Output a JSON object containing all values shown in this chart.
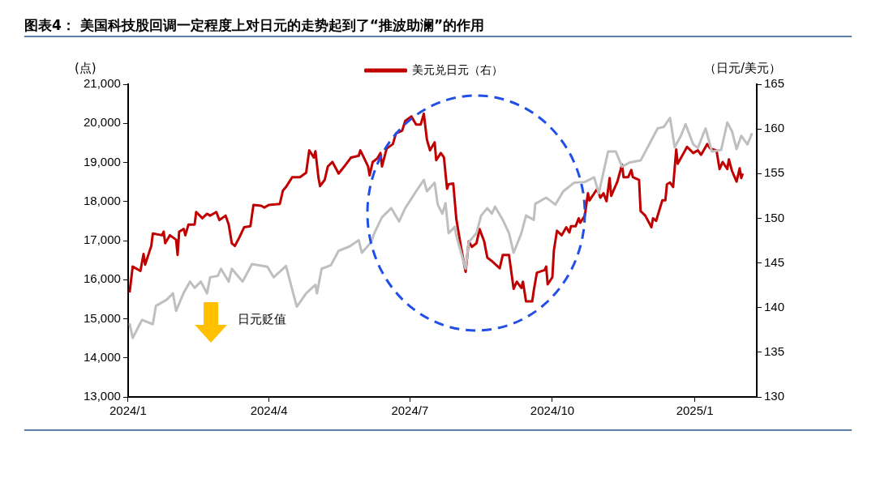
{
  "chart_data": {
    "type": "line",
    "title": "图表4：  美国科技股回调一定程度上对日元的走势起到了“推波助澜”的作用",
    "ylabel": "(点)",
    "y2label": "（日元/美元）",
    "annotations": [
      "日元贬值"
    ],
    "legend": "top",
    "grid": false,
    "marker": "none",
    "line_style": "solid",
    "xlim": [
      "2024-01-01",
      "2025-02-10"
    ],
    "xticks": [
      {
        "value": "2024-01-01",
        "label": "2024/1"
      },
      {
        "value": "2024-04-01",
        "label": "2024/4"
      },
      {
        "value": "2024-07-01",
        "label": "2024/7"
      },
      {
        "value": "2024-10-01",
        "label": "2024/10"
      },
      {
        "value": "2025-01-01",
        "label": "2025/1"
      }
    ],
    "ylim": [
      13000,
      21000
    ],
    "yticks": [
      {
        "value": 13000,
        "label": "13,000"
      },
      {
        "value": 14000,
        "label": "14,000"
      },
      {
        "value": 15000,
        "label": "15,000"
      },
      {
        "value": 16000,
        "label": "16,000"
      },
      {
        "value": 17000,
        "label": "17,000"
      },
      {
        "value": 18000,
        "label": "18,000"
      },
      {
        "value": 19000,
        "label": "19,000"
      },
      {
        "value": 20000,
        "label": "20,000"
      },
      {
        "value": 21000,
        "label": "21,000"
      }
    ],
    "y2lim": [
      130,
      165
    ],
    "y2ticks": [
      130,
      135,
      140,
      145,
      150,
      155,
      160,
      165
    ],
    "series": [
      {
        "color": "#bfbfbf",
        "x": [
          "2024-01-02",
          "2024-01-04",
          "2024-01-10",
          "2024-01-17",
          "2024-01-19",
          "2024-01-26",
          "2024-01-30",
          "2024-02-01",
          "2024-02-06",
          "2024-02-10",
          "2024-02-13",
          "2024-02-17",
          "2024-02-21",
          "2024-02-23",
          "2024-02-28",
          "2024-03-01",
          "2024-03-06",
          "2024-03-08",
          "2024-03-15",
          "2024-03-21",
          "2024-03-31",
          "2024-04-04",
          "2024-04-12",
          "2024-04-17",
          "2024-04-19",
          "2024-04-25",
          "2024-05-01",
          "2024-05-02",
          "2024-05-05",
          "2024-05-11",
          "2024-05-16",
          "2024-05-23",
          "2024-05-29",
          "2024-05-31",
          "2024-06-06",
          "2024-06-08",
          "2024-06-13",
          "2024-06-19",
          "2024-06-24",
          "2024-06-28",
          "2024-07-06",
          "2024-07-10",
          "2024-07-12",
          "2024-07-17",
          "2024-07-19",
          "2024-07-22",
          "2024-07-24",
          "2024-07-26",
          "2024-07-30",
          "2024-07-31",
          "2024-08-06",
          "2024-08-08",
          "2024-08-13",
          "2024-08-16",
          "2024-08-20",
          "2024-08-23",
          "2024-08-25",
          "2024-08-30",
          "2024-09-03",
          "2024-09-06",
          "2024-09-11",
          "2024-09-14",
          "2024-09-19",
          "2024-09-20",
          "2024-09-27",
          "2024-10-03",
          "2024-10-08",
          "2024-10-15",
          "2024-10-22",
          "2024-10-28",
          "2024-10-31",
          "2024-11-06",
          "2024-11-11",
          "2024-11-15",
          "2024-11-20",
          "2024-11-27",
          "2024-12-04",
          "2024-12-08",
          "2024-12-12",
          "2024-12-16",
          "2024-12-19",
          "2024-12-23",
          "2024-12-26",
          "2024-12-31",
          "2025-01-03",
          "2025-01-06",
          "2025-01-08",
          "2025-01-12",
          "2025-01-18",
          "2025-01-22",
          "2025-01-25",
          "2025-01-28",
          "2025-01-31",
          "2025-02-04",
          "2025-02-07"
        ],
        "values": [
          14880,
          14510,
          14970,
          14860,
          15330,
          15490,
          15650,
          15200,
          15670,
          15950,
          15790,
          15950,
          15650,
          16060,
          16100,
          16280,
          15950,
          16280,
          15950,
          16400,
          16330,
          16060,
          16350,
          15600,
          15310,
          15650,
          15870,
          15650,
          16280,
          16370,
          16740,
          16850,
          17010,
          16690,
          16960,
          17190,
          17600,
          17830,
          17490,
          17830,
          18320,
          18550,
          18260,
          18480,
          17920,
          17690,
          17960,
          17190,
          17350,
          17120,
          16280,
          16960,
          17190,
          17640,
          17830,
          17690,
          17870,
          17530,
          17190,
          16690,
          17190,
          17640,
          17530,
          17940,
          18100,
          17920,
          18260,
          18480,
          18500,
          18620,
          18210,
          19280,
          19280,
          18890,
          19000,
          19050,
          19570,
          19870,
          19910,
          20140,
          19390,
          19680,
          19980,
          19460,
          19370,
          19680,
          19870,
          19280,
          19320,
          20020,
          19800,
          19340,
          19680,
          19460,
          19750
        ]
      },
      {
        "name": "美元兑日元（右）",
        "axis": "y2",
        "color": "#c00000",
        "x": [
          "2024-01-02",
          "2024-01-04",
          "2024-01-09",
          "2024-01-11",
          "2024-01-12",
          "2024-01-16",
          "2024-01-17",
          "2024-01-23",
          "2024-01-24",
          "2024-01-25",
          "2024-01-28",
          "2024-02-01",
          "2024-02-02",
          "2024-02-03",
          "2024-02-06",
          "2024-02-07",
          "2024-02-09",
          "2024-02-13",
          "2024-02-14",
          "2024-02-18",
          "2024-02-21",
          "2024-02-23",
          "2024-02-27",
          "2024-02-29",
          "2024-03-04",
          "2024-03-06",
          "2024-03-08",
          "2024-03-10",
          "2024-03-13",
          "2024-03-16",
          "2024-03-20",
          "2024-03-22",
          "2024-03-27",
          "2024-03-29",
          "2024-04-01",
          "2024-04-08",
          "2024-04-10",
          "2024-04-12",
          "2024-04-16",
          "2024-04-21",
          "2024-04-25",
          "2024-04-27",
          "2024-04-30",
          "2024-05-01",
          "2024-05-03",
          "2024-05-04",
          "2024-05-07",
          "2024-05-09",
          "2024-05-12",
          "2024-05-16",
          "2024-05-21",
          "2024-05-24",
          "2024-05-29",
          "2024-05-30",
          "2024-06-01",
          "2024-06-04",
          "2024-06-05",
          "2024-06-07",
          "2024-06-10",
          "2024-06-12",
          "2024-06-13",
          "2024-06-16",
          "2024-06-20",
          "2024-06-22",
          "2024-06-26",
          "2024-06-28",
          "2024-07-02",
          "2024-07-05",
          "2024-07-08",
          "2024-07-10",
          "2024-07-12",
          "2024-07-14",
          "2024-07-17",
          "2024-07-18",
          "2024-07-21",
          "2024-07-23",
          "2024-07-25",
          "2024-07-26",
          "2024-07-29",
          "2024-07-31",
          "2024-08-03",
          "2024-08-06",
          "2024-08-08",
          "2024-08-10",
          "2024-08-13",
          "2024-08-15",
          "2024-08-18",
          "2024-08-20",
          "2024-08-23",
          "2024-08-28",
          "2024-08-30",
          "2024-09-03",
          "2024-09-06",
          "2024-09-08",
          "2024-09-11",
          "2024-09-12",
          "2024-09-14",
          "2024-09-18",
          "2024-09-19",
          "2024-09-21",
          "2024-09-26",
          "2024-09-27",
          "2024-09-28",
          "2024-10-01",
          "2024-10-02",
          "2024-10-04",
          "2024-10-07",
          "2024-10-10",
          "2024-10-12",
          "2024-10-13",
          "2024-10-16",
          "2024-10-18",
          "2024-10-19",
          "2024-10-22",
          "2024-10-23",
          "2024-10-24",
          "2024-10-25",
          "2024-10-30",
          "2024-11-01",
          "2024-11-03",
          "2024-11-05",
          "2024-11-07",
          "2024-11-08",
          "2024-11-12",
          "2024-11-15",
          "2024-11-16",
          "2024-11-19",
          "2024-11-21",
          "2024-11-22",
          "2024-11-26",
          "2024-11-27",
          "2024-11-30",
          "2024-12-04",
          "2024-12-05",
          "2024-12-07",
          "2024-12-11",
          "2024-12-13",
          "2024-12-14",
          "2024-12-16",
          "2024-12-18",
          "2024-12-20",
          "2024-12-21",
          "2024-12-27",
          "2024-12-31",
          "2025-01-03",
          "2025-01-05",
          "2025-01-09",
          "2025-01-11",
          "2025-01-15",
          "2025-01-17",
          "2025-01-19",
          "2025-01-22",
          "2025-01-23",
          "2025-01-25",
          "2025-01-28",
          "2025-01-30",
          "2025-01-31",
          "2025-02-01"
        ],
        "values": [
          141.7,
          144.6,
          144.1,
          146.0,
          144.8,
          146.9,
          148.3,
          148.1,
          148.5,
          147.2,
          148.1,
          147.6,
          145.9,
          148.5,
          148.8,
          148.1,
          149.3,
          149.3,
          150.7,
          150.0,
          150.5,
          150.3,
          150.7,
          149.8,
          150.3,
          149.3,
          147.2,
          146.9,
          147.9,
          149.0,
          149.1,
          151.5,
          151.4,
          151.2,
          151.5,
          151.6,
          153.1,
          153.5,
          154.6,
          154.6,
          155.1,
          157.6,
          156.8,
          157.5,
          154.5,
          153.6,
          154.3,
          155.8,
          156.3,
          155.0,
          156.1,
          156.8,
          157.0,
          157.6,
          156.9,
          155.8,
          154.8,
          156.3,
          156.7,
          157.3,
          155.8,
          157.8,
          158.3,
          159.5,
          159.8,
          160.9,
          161.4,
          160.5,
          160.5,
          161.7,
          158.8,
          157.6,
          158.5,
          156.5,
          157.3,
          156.8,
          153.3,
          153.8,
          153.9,
          149.9,
          146.8,
          144.0,
          147.4,
          146.8,
          147.2,
          148.8,
          147.4,
          145.6,
          145.2,
          144.4,
          145.9,
          145.9,
          142.1,
          142.9,
          142.2,
          142.9,
          140.7,
          140.7,
          141.9,
          143.9,
          144.2,
          144.6,
          142.6,
          143.4,
          146.4,
          148.6,
          148.1,
          149.0,
          148.4,
          149.1,
          149.1,
          150.0,
          149.5,
          150.3,
          151.6,
          152.8,
          152.0,
          153.3,
          152.3,
          152.8,
          151.9,
          154.5,
          152.5,
          154.1,
          156.0,
          154.6,
          154.6,
          155.4,
          154.6,
          154.3,
          150.8,
          150.3,
          149.0,
          150.0,
          149.7,
          152.0,
          152.0,
          153.8,
          154.0,
          153.5,
          157.7,
          156.1,
          158.0,
          157.3,
          157.6,
          157.1,
          158.3,
          157.8,
          157.6,
          155.5,
          156.3,
          155.5,
          156.6,
          155.3,
          154.1,
          155.6,
          154.5,
          155.0
        ]
      }
    ]
  }
}
